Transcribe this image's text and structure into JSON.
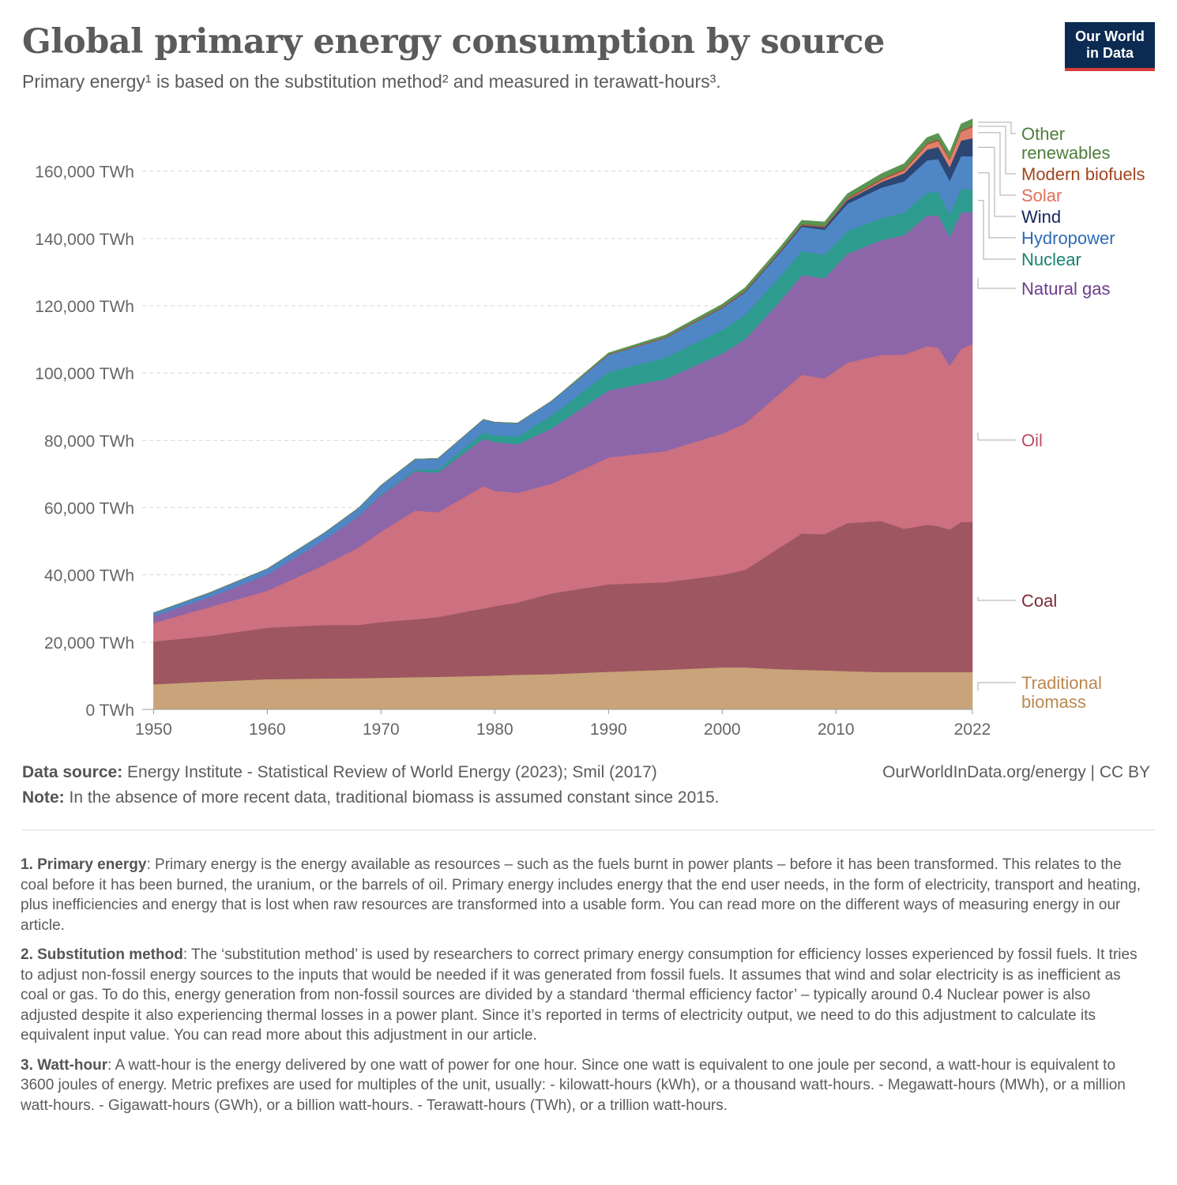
{
  "header": {
    "title": "Global primary energy consumption by source",
    "subtitle": "Primary energy¹ is based on the substitution method² and measured in terawatt-hours³.",
    "logo_line1": "Our World",
    "logo_line2": "in Data"
  },
  "colors": {
    "traditional_biomass": "#c9a47a",
    "coal": "#9e5760",
    "oil": "#cd7080",
    "natural_gas": "#8c66a8",
    "nuclear": "#2e9b8f",
    "hydropower": "#4f86c6",
    "wind": "#2c4774",
    "solar": "#e0806b",
    "modern_biofuels": "#a4533a",
    "other_renewables": "#5a9452"
  },
  "chart_data": {
    "type": "area",
    "stacked": true,
    "x": [
      1950,
      1955,
      1960,
      1965,
      1968,
      1970,
      1973,
      1975,
      1979,
      1980,
      1982,
      1985,
      1990,
      1995,
      2000,
      2002,
      2005,
      2007,
      2009,
      2011,
      2014,
      2016,
      2018,
      2019,
      2020,
      2021,
      2022
    ],
    "series": [
      {
        "name": "Traditional biomass",
        "key": "traditional_biomass",
        "label_lines": [
          "Traditional",
          "biomass"
        ],
        "values": [
          7500,
          8300,
          9000,
          9200,
          9300,
          9400,
          9600,
          9700,
          10000,
          10100,
          10300,
          10500,
          11200,
          11800,
          12500,
          12500,
          12000,
          11800,
          11600,
          11400,
          11100,
          11100,
          11100,
          11100,
          11100,
          11100,
          11100
        ]
      },
      {
        "name": "Coal",
        "key": "coal",
        "label_lines": [
          "Coal"
        ],
        "values": [
          12700,
          13600,
          15300,
          15900,
          15800,
          16600,
          17200,
          17800,
          20000,
          20600,
          21500,
          24000,
          26000,
          26000,
          27500,
          29000,
          36000,
          40500,
          40500,
          44000,
          44900,
          42600,
          43800,
          43400,
          42400,
          44600,
          44700
        ]
      },
      {
        "name": "Oil",
        "key": "oil",
        "label_lines": [
          "Oil"
        ],
        "values": [
          5500,
          8600,
          11000,
          17900,
          23000,
          26900,
          32300,
          31100,
          36400,
          34300,
          32600,
          32600,
          37700,
          39000,
          42000,
          43500,
          45700,
          47200,
          46300,
          47700,
          49400,
          51800,
          53100,
          53100,
          48700,
          51500,
          52800
        ]
      },
      {
        "name": "Natural gas",
        "key": "natural_gas",
        "label_lines": [
          "Natural gas"
        ],
        "values": [
          2000,
          3000,
          4800,
          7400,
          9300,
          10800,
          11700,
          11800,
          14100,
          14500,
          14400,
          16400,
          19900,
          21400,
          23800,
          25000,
          27300,
          29600,
          29800,
          32300,
          34100,
          35500,
          38800,
          39300,
          38300,
          40500,
          39400
        ]
      },
      {
        "name": "Nuclear",
        "key": "nuclear",
        "label_lines": [
          "Nuclear"
        ],
        "values": [
          0,
          0,
          10,
          50,
          100,
          200,
          500,
          900,
          1800,
          2000,
          2300,
          3900,
          5500,
          6400,
          7000,
          7300,
          7400,
          7200,
          7000,
          6800,
          6600,
          6700,
          6800,
          7000,
          6700,
          7000,
          6600
        ]
      },
      {
        "name": "Hydropower",
        "key": "hydropower",
        "label_lines": [
          "Hydropower"
        ],
        "values": [
          1000,
          1300,
          1700,
          2000,
          2300,
          2700,
          3100,
          3300,
          3900,
          3900,
          4000,
          4300,
          5100,
          5800,
          6500,
          6700,
          7000,
          7200,
          7400,
          8100,
          9000,
          9300,
          9600,
          9700,
          10000,
          9800,
          9800
        ]
      },
      {
        "name": "Wind",
        "key": "wind",
        "label_lines": [
          "Wind"
        ],
        "values": [
          0,
          0,
          0,
          0,
          0,
          0,
          0,
          0,
          0,
          0,
          0,
          0,
          10,
          20,
          80,
          150,
          250,
          430,
          700,
          1100,
          1700,
          2400,
          3200,
          3600,
          4000,
          4600,
          5400
        ]
      },
      {
        "name": "Solar",
        "key": "solar",
        "label_lines": [
          "Solar"
        ],
        "values": [
          0,
          0,
          0,
          0,
          0,
          0,
          0,
          0,
          0,
          0,
          0,
          0,
          0,
          0,
          5,
          10,
          20,
          30,
          60,
          150,
          500,
          800,
          1450,
          1800,
          2200,
          2600,
          3300
        ]
      },
      {
        "name": "Modern biofuels",
        "key": "modern_biofuels",
        "label_lines": [
          "Modern biofuels"
        ],
        "values": [
          0,
          0,
          0,
          0,
          0,
          0,
          0,
          0,
          0,
          0,
          0,
          0,
          180,
          250,
          290,
          300,
          320,
          340,
          360,
          400,
          430,
          440,
          450,
          450,
          420,
          440,
          450
        ]
      },
      {
        "name": "Other renewables",
        "key": "other_renewables",
        "label_lines": [
          "Other",
          "renewables"
        ],
        "values": [
          0,
          0,
          0,
          0,
          0,
          0,
          0,
          0,
          0,
          0,
          0,
          0,
          400,
          600,
          800,
          900,
          1000,
          1100,
          1200,
          1300,
          1500,
          1600,
          1700,
          1800,
          1800,
          1900,
          1950
        ]
      }
    ],
    "y_ticks": [
      0,
      20000,
      40000,
      60000,
      80000,
      100000,
      120000,
      140000,
      160000
    ],
    "y_tick_labels": [
      "0 TWh",
      "20,000 TWh",
      "40,000 TWh",
      "60,000 TWh",
      "80,000 TWh",
      "100,000 TWh",
      "120,000 TWh",
      "140,000 TWh",
      "160,000 TWh"
    ],
    "x_ticks": [
      1950,
      1960,
      1970,
      1980,
      1990,
      2000,
      2010,
      2022
    ],
    "x_tick_labels": [
      "1950",
      "1960",
      "1970",
      "1980",
      "1990",
      "2000",
      "2010",
      "2022"
    ],
    "xlim": [
      1949,
      2022
    ],
    "ylim": [
      0,
      178000
    ],
    "grid": "horizontal-dashed",
    "legend": "right"
  },
  "footer": {
    "source_label": "Data source:",
    "source_text": " Energy Institute - Statistical Review of World Energy (2023); Smil (2017)",
    "note_label": "Note:",
    "note_text": " In the absence of more recent data, traditional biomass is assumed constant since 2015.",
    "url": "OurWorldInData.org/energy | CC BY"
  },
  "notes": [
    {
      "label": "1. Primary energy",
      "text": ": Primary energy is the energy available as resources – such as the fuels burnt in power plants – before it has been transformed. This relates to the coal before it has been burned, the uranium, or the barrels of oil. Primary energy includes energy that the end user needs, in the form of electricity, transport and heating, plus inefficiencies and energy that is lost when raw resources are transformed into a usable form. You can read more on the different ways of measuring energy in our article."
    },
    {
      "label": "2. Substitution method",
      "text": ": The ‘substitution method’ is used by researchers to correct primary energy consumption for efficiency losses experienced by fossil fuels. It tries to adjust non-fossil energy sources to the inputs that would be needed if it was generated from fossil fuels. It assumes that wind and solar electricity is as inefficient as coal or gas. To do this, energy generation from non-fossil sources are divided by a standard ‘thermal efficiency factor’ – typically around 0.4 Nuclear power is also adjusted despite it also experiencing thermal losses in a power plant. Since it’s reported in terms of electricity output, we need to do this adjustment to calculate its equivalent input value. You can read more about this adjustment in our article."
    },
    {
      "label": "3. Watt-hour",
      "text": ": A watt-hour is the energy delivered by one watt of power for one hour. Since one watt is equivalent to one joule per second, a watt-hour is equivalent to 3600 joules of energy. Metric prefixes are used for multiples of the unit, usually: - kilowatt-hours (kWh), or a thousand watt-hours. - Megawatt-hours (MWh), or a million watt-hours. - Gigawatt-hours (GWh), or a billion watt-hours. - Terawatt-hours (TWh), or a trillion watt-hours."
    }
  ]
}
